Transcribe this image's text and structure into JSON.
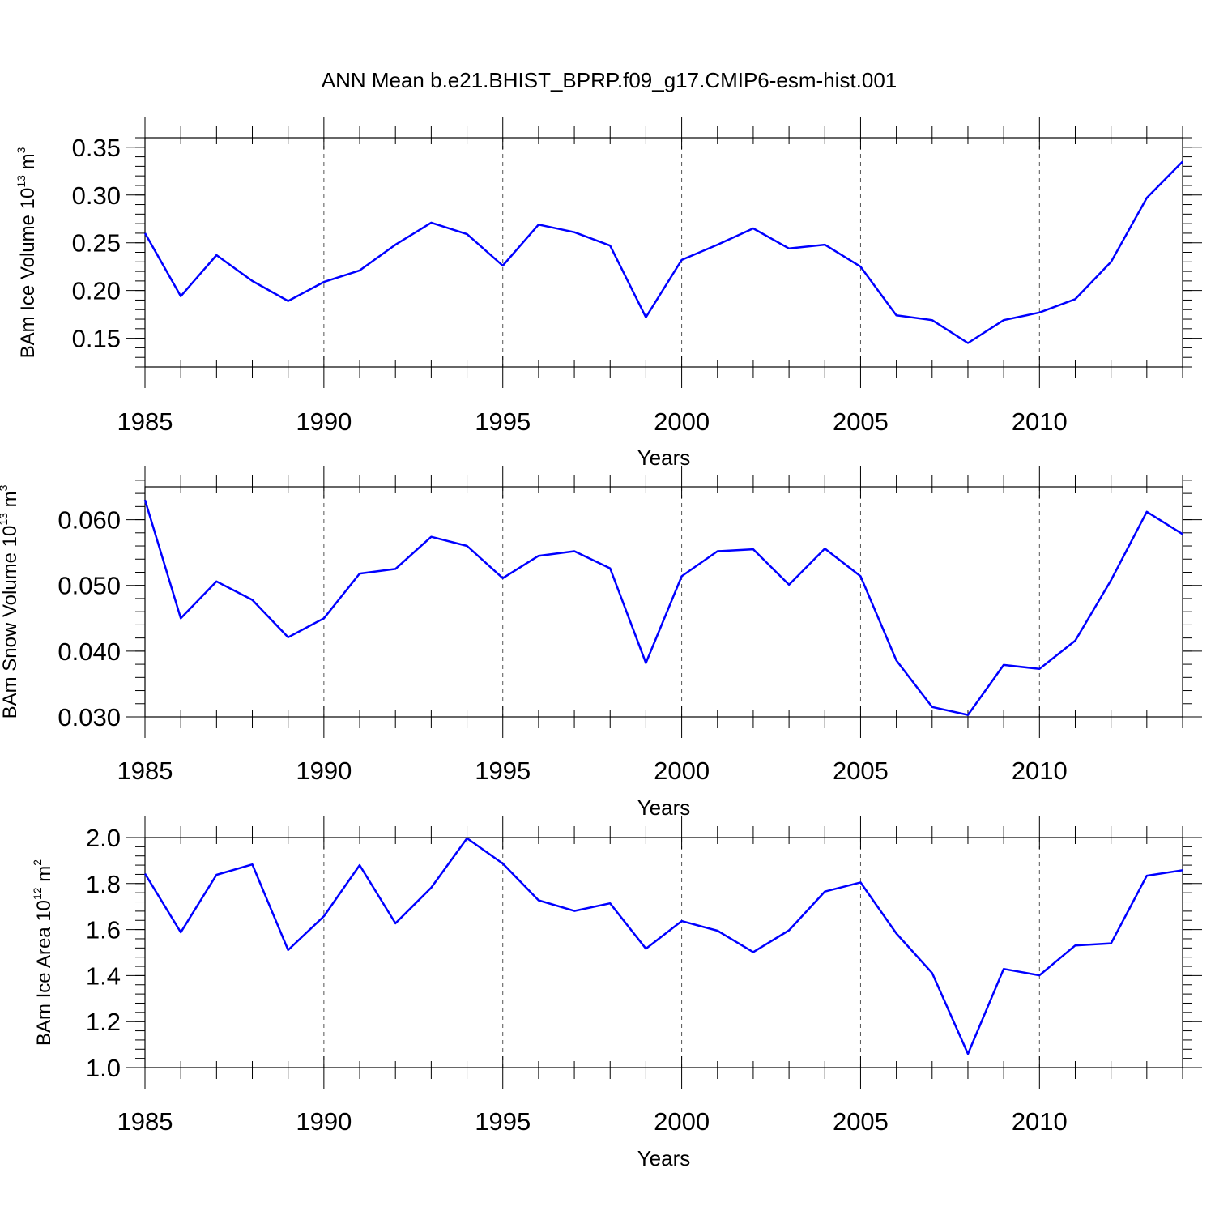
{
  "title": "ANN Mean b.e21.BHIST_BPRP.f09_g17.CMIP6-esm-hist.001",
  "series_color": "#0000ff",
  "chart_data": [
    {
      "type": "line",
      "ylabel": "BAm Ice Volume 10",
      "ylabel_exp": "13",
      "ylabel_unit": "m",
      "ylabel_unit_exp": "3",
      "xlabel": "Years",
      "xlim": [
        1985,
        2014
      ],
      "ylim": [
        0.12,
        0.36
      ],
      "xticks": [
        1985,
        1990,
        1995,
        2000,
        2005,
        2010
      ],
      "xtick_labels": [
        "1985",
        "1990",
        "1995",
        "2000",
        "2005",
        "2010"
      ],
      "yticks": [
        0.15,
        0.2,
        0.25,
        0.3,
        0.35
      ],
      "ytick_labels": [
        "0.15",
        "0.20",
        "0.25",
        "0.30",
        "0.35"
      ],
      "yminor_step": 0.01,
      "x": [
        1985,
        1986,
        1987,
        1988,
        1989,
        1990,
        1991,
        1992,
        1993,
        1994,
        1995,
        1996,
        1997,
        1998,
        1999,
        2000,
        2001,
        2002,
        2003,
        2004,
        2005,
        2006,
        2007,
        2008,
        2009,
        2010,
        2011,
        2012,
        2013,
        2014
      ],
      "values": [
        0.26,
        0.194,
        0.237,
        0.21,
        0.189,
        0.209,
        0.221,
        0.248,
        0.271,
        0.259,
        0.226,
        0.269,
        0.261,
        0.247,
        0.172,
        0.232,
        0.248,
        0.265,
        0.244,
        0.248,
        0.225,
        0.174,
        0.169,
        0.145,
        0.169,
        0.177,
        0.191,
        0.23,
        0.297,
        0.335
      ]
    },
    {
      "type": "line",
      "ylabel": "BAm Snow Volume 10",
      "ylabel_exp": "13",
      "ylabel_unit": "m",
      "ylabel_unit_exp": "3",
      "xlabel": "Years",
      "xlim": [
        1985,
        2014
      ],
      "ylim": [
        0.03,
        0.065
      ],
      "xticks": [
        1985,
        1990,
        1995,
        2000,
        2005,
        2010
      ],
      "xtick_labels": [
        "1985",
        "1990",
        "1995",
        "2000",
        "2005",
        "2010"
      ],
      "yticks": [
        0.03,
        0.04,
        0.05,
        0.06
      ],
      "ytick_labels": [
        "0.030",
        "0.040",
        "0.050",
        "0.060"
      ],
      "yminor_step": 0.002,
      "x": [
        1985,
        1986,
        1987,
        1988,
        1989,
        1990,
        1991,
        1992,
        1993,
        1994,
        1995,
        1996,
        1997,
        1998,
        1999,
        2000,
        2001,
        2002,
        2003,
        2004,
        2005,
        2006,
        2007,
        2008,
        2009,
        2010,
        2011,
        2012,
        2013,
        2014
      ],
      "values": [
        0.063,
        0.045,
        0.0506,
        0.0478,
        0.0421,
        0.045,
        0.0518,
        0.0525,
        0.0574,
        0.056,
        0.0511,
        0.0545,
        0.0552,
        0.0526,
        0.0382,
        0.0514,
        0.0552,
        0.0555,
        0.0501,
        0.0556,
        0.0514,
        0.0386,
        0.0315,
        0.0303,
        0.0379,
        0.0373,
        0.0416,
        0.0508,
        0.0612,
        0.0578
      ]
    },
    {
      "type": "line",
      "ylabel": "BAm Ice Area 10",
      "ylabel_exp": "12",
      "ylabel_unit": "m",
      "ylabel_unit_exp": "2",
      "xlabel": "Years",
      "xlim": [
        1985,
        2014
      ],
      "ylim": [
        1.0,
        2.0
      ],
      "xticks": [
        1985,
        1990,
        1995,
        2000,
        2005,
        2010
      ],
      "xtick_labels": [
        "1985",
        "1990",
        "1995",
        "2000",
        "2005",
        "2010"
      ],
      "yticks": [
        1.0,
        1.2,
        1.4,
        1.6,
        1.8,
        2.0
      ],
      "ytick_labels": [
        "1.0",
        "1.2",
        "1.4",
        "1.6",
        "1.8",
        "2.0"
      ],
      "yminor_step": 0.04,
      "x": [
        1985,
        1986,
        1987,
        1988,
        1989,
        1990,
        1991,
        1992,
        1993,
        1994,
        1995,
        1996,
        1997,
        1998,
        1999,
        2000,
        2001,
        2002,
        2003,
        2004,
        2005,
        2006,
        2007,
        2008,
        2009,
        2010,
        2011,
        2012,
        2013,
        2014
      ],
      "values": [
        1.843,
        1.588,
        1.838,
        1.883,
        1.511,
        1.658,
        1.88,
        1.627,
        1.782,
        1.997,
        1.887,
        1.727,
        1.681,
        1.714,
        1.517,
        1.637,
        1.595,
        1.502,
        1.597,
        1.765,
        1.805,
        1.583,
        1.411,
        1.06,
        1.429,
        1.401,
        1.531,
        1.54,
        1.834,
        1.858
      ]
    }
  ]
}
